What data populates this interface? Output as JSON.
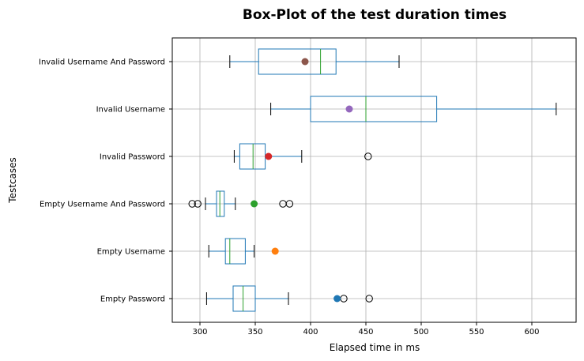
{
  "chart_data": {
    "type": "boxplot",
    "orientation": "horizontal",
    "title": "Box-Plot of the test duration times",
    "xlabel": "Elapsed time in ms",
    "ylabel": "Testcases",
    "xlim": [
      275,
      640
    ],
    "xticks": [
      300,
      350,
      400,
      450,
      500,
      550,
      600
    ],
    "grid": true,
    "categories": [
      "Empty Password",
      "Empty Username",
      "Empty Username And Password",
      "Invalid Password",
      "Invalid Username",
      "Invalid Username And Password"
    ],
    "boxes": [
      {
        "whisker_low": 306,
        "q1": 330,
        "median": 339,
        "q3": 350,
        "whisker_high": 380,
        "outliers": [
          430,
          453
        ],
        "mean": 424
      },
      {
        "whisker_low": 308,
        "q1": 323,
        "median": 327,
        "q3": 341,
        "whisker_high": 349,
        "outliers": [],
        "mean": 368
      },
      {
        "whisker_low": 305,
        "q1": 315,
        "median": 318,
        "q3": 322,
        "whisker_high": 332,
        "outliers": [
          293,
          298,
          375,
          381
        ],
        "mean": 349
      },
      {
        "whisker_low": 331,
        "q1": 336,
        "median": 348,
        "q3": 359,
        "whisker_high": 392,
        "outliers": [
          452
        ],
        "mean": 362
      },
      {
        "whisker_low": 364,
        "q1": 400,
        "median": 450,
        "q3": 514,
        "whisker_high": 622,
        "outliers": [],
        "mean": 435
      },
      {
        "whisker_low": 327,
        "q1": 353,
        "median": 409,
        "q3": 423,
        "whisker_high": 480,
        "outliers": [],
        "mean": 395
      }
    ],
    "mean_colors": [
      "#1f77b4",
      "#ff7f0e",
      "#2ca02c",
      "#d62728",
      "#9467bd",
      "#8c564b"
    ],
    "box_color": "#1f77b4",
    "median_color": "#2ca02c",
    "grid_color": "#b0b0b0"
  }
}
